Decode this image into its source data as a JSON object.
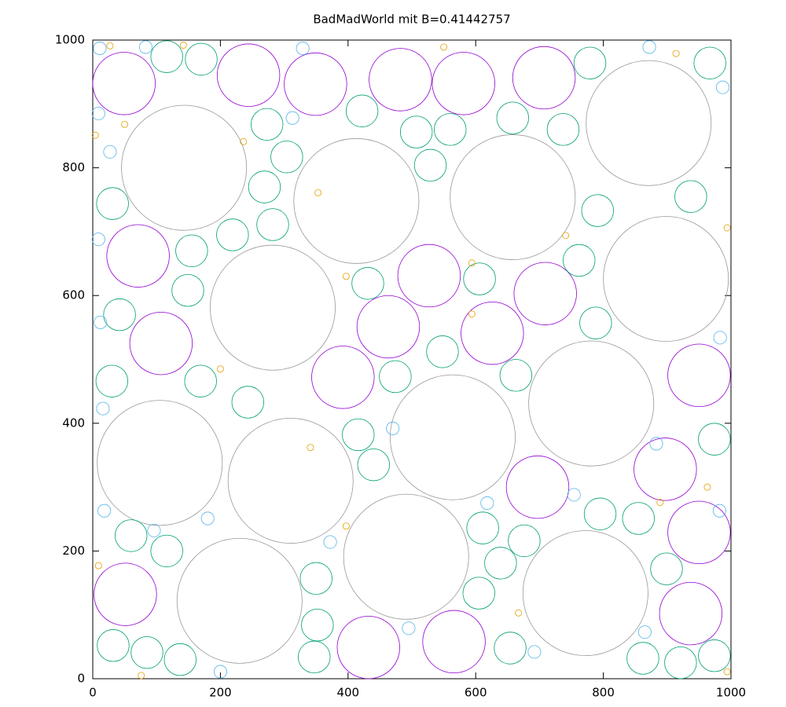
{
  "chart_data": {
    "type": "bubble",
    "title": "BadMadWorld mit B=0.41442757",
    "xlim": [
      0,
      1000
    ],
    "ylim": [
      0,
      1000
    ],
    "xticks": [
      0,
      200,
      400,
      600,
      800,
      1000
    ],
    "yticks": [
      0,
      200,
      400,
      600,
      800,
      1000
    ],
    "series": [
      {
        "color": "#999999",
        "x": [
          143,
          413,
          658,
          871,
          898,
          282,
          564,
          781,
          105,
          310,
          491,
          230,
          772
        ],
        "y": [
          800,
          748,
          754,
          870,
          626,
          581,
          378,
          431,
          338,
          310,
          191,
          122,
          134
        ],
        "r": [
          98,
          98,
          98,
          98,
          98,
          98,
          98,
          98,
          98,
          98,
          98,
          98,
          98
        ]
      },
      {
        "color": "#9400d3",
        "x": [
          49,
          244,
          349,
          482,
          581,
          707,
          71,
          527,
          107,
          709,
          463,
          626,
          392,
          950,
          697,
          897,
          950,
          51,
          937,
          432,
          566
        ],
        "y": [
          932,
          945,
          931,
          938,
          932,
          941,
          662,
          631,
          525,
          603,
          551,
          541,
          472,
          475,
          300,
          328,
          229,
          132,
          102,
          49,
          58
        ],
        "r": [
          49,
          49,
          49,
          49,
          49,
          49,
          49,
          49,
          49,
          49,
          49,
          49,
          49,
          49,
          49,
          49,
          49,
          49,
          49,
          49,
          49
        ]
      },
      {
        "color": "#009e73",
        "x": [
          116,
          170,
          779,
          967,
          273,
          422,
          507,
          560,
          658,
          737,
          529,
          304,
          269,
          31,
          937,
          791,
          282,
          219,
          155,
          762,
          606,
          431,
          149,
          42,
          788,
          548,
          663,
          474,
          30,
          169,
          243,
          974,
          416,
          440,
          795,
          855,
          611,
          676,
          60,
          116,
          639,
          899,
          350,
          605,
          352,
          32,
          85,
          137,
          654,
          347,
          862,
          921,
          974
        ],
        "y": [
          974,
          970,
          964,
          964,
          868,
          889,
          856,
          860,
          878,
          860,
          804,
          817,
          770,
          744,
          755,
          733,
          711,
          695,
          670,
          655,
          626,
          619,
          608,
          570,
          557,
          512,
          475,
          473,
          466,
          466,
          433,
          375,
          382,
          335,
          258,
          251,
          236,
          216,
          224,
          200,
          181,
          172,
          157,
          134,
          84,
          52,
          41,
          30,
          48,
          34,
          32,
          25,
          36
        ],
        "r": [
          25,
          25,
          25,
          25,
          25,
          25,
          25,
          25,
          25,
          25,
          25,
          25,
          25,
          25,
          25,
          25,
          25,
          25,
          25,
          25,
          25,
          25,
          25,
          25,
          25,
          25,
          25,
          25,
          25,
          25,
          25,
          25,
          25,
          25,
          25,
          25,
          25,
          25,
          25,
          25,
          25,
          25,
          25,
          25,
          25,
          25,
          25,
          25,
          25,
          25,
          25,
          25,
          25
        ]
      },
      {
        "color": "#56b4e9",
        "x": [
          11,
          83,
          329,
          872,
          987,
          9,
          27,
          313,
          9,
          12,
          16,
          18,
          96,
          180,
          372,
          470,
          618,
          754,
          883,
          983,
          982,
          865,
          692,
          200,
          495
        ],
        "y": [
          987,
          989,
          987,
          989,
          926,
          885,
          825,
          878,
          688,
          558,
          423,
          263,
          232,
          251,
          214,
          392,
          275,
          288,
          368,
          534,
          263,
          73,
          42,
          11,
          79
        ],
        "r": [
          10,
          10,
          10,
          10,
          10,
          10,
          10,
          10,
          10,
          10,
          10,
          10,
          10,
          10,
          10,
          10,
          10,
          10,
          10,
          10,
          10,
          10,
          10,
          10,
          10
        ]
      },
      {
        "color": "#e69f00",
        "x": [
          27,
          142,
          550,
          914,
          4,
          50,
          236,
          353,
          397,
          594,
          741,
          994,
          200,
          594,
          889,
          9,
          397,
          667,
          994,
          76,
          341,
          963
        ],
        "y": [
          991,
          992,
          989,
          979,
          851,
          868,
          841,
          761,
          630,
          651,
          694,
          706,
          485,
          571,
          276,
          177,
          239,
          103,
          11,
          5,
          362,
          300
        ],
        "r": [
          5,
          5,
          5,
          5,
          5,
          5,
          5,
          5,
          5,
          5,
          5,
          5,
          5,
          5,
          5,
          5,
          5,
          5,
          5,
          5,
          5,
          5
        ]
      }
    ]
  }
}
